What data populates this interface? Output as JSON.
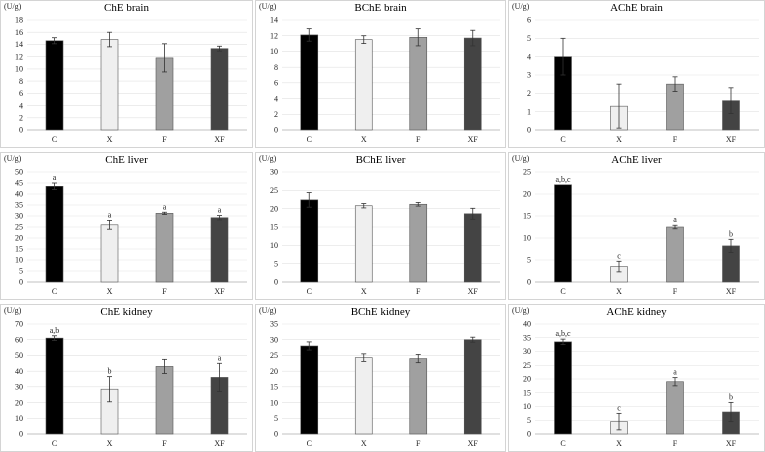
{
  "chart_data": [
    {
      "type": "bar",
      "title": "ChE brain",
      "ylabel": "(U/g)",
      "ylim": [
        0,
        18
      ],
      "ytick_step": 2,
      "categories": [
        "C",
        "X",
        "F",
        "XF"
      ],
      "values": [
        14.6,
        14.8,
        11.8,
        13.3
      ],
      "errors": [
        0.5,
        1.2,
        2.3,
        0.4
      ],
      "labels": [
        "",
        "",
        "",
        ""
      ]
    },
    {
      "type": "bar",
      "title": "BChE brain",
      "ylabel": "(U/g)",
      "ylim": [
        0,
        14
      ],
      "ytick_step": 2,
      "categories": [
        "C",
        "X",
        "F",
        "XF"
      ],
      "values": [
        12.1,
        11.5,
        11.8,
        11.7
      ],
      "errors": [
        0.8,
        0.5,
        1.1,
        1.0
      ],
      "labels": [
        "",
        "",
        "",
        ""
      ]
    },
    {
      "type": "bar",
      "title": "AChE brain",
      "ylabel": "(U/g)",
      "ylim": [
        0,
        6
      ],
      "ytick_step": 1,
      "categories": [
        "C",
        "X",
        "F",
        "XF"
      ],
      "values": [
        4.0,
        1.3,
        2.5,
        1.6
      ],
      "errors": [
        1.0,
        1.2,
        0.4,
        0.7
      ],
      "labels": [
        "",
        "",
        "",
        ""
      ]
    },
    {
      "type": "bar",
      "title": "ChE liver",
      "ylabel": "(U/g)",
      "ylim": [
        0,
        50
      ],
      "ytick_step": 5,
      "categories": [
        "C",
        "X",
        "F",
        "XF"
      ],
      "values": [
        43.5,
        26.0,
        31.2,
        29.2
      ],
      "errors": [
        1.5,
        2.0,
        0.5,
        1.0
      ],
      "labels": [
        "a",
        "a",
        "a",
        "a"
      ]
    },
    {
      "type": "bar",
      "title": "BChE liver",
      "ylabel": "(U/g)",
      "ylim": [
        0,
        30
      ],
      "ytick_step": 5,
      "categories": [
        "C",
        "X",
        "F",
        "XF"
      ],
      "values": [
        22.4,
        20.8,
        21.2,
        18.6
      ],
      "errors": [
        2.0,
        0.6,
        0.5,
        1.5
      ],
      "labels": [
        "",
        "",
        "",
        ""
      ]
    },
    {
      "type": "bar",
      "title": "AChE liver",
      "ylabel": "(U/g)",
      "ylim": [
        0,
        25
      ],
      "ytick_step": 5,
      "categories": [
        "C",
        "X",
        "F",
        "XF"
      ],
      "values": [
        22.1,
        3.5,
        12.5,
        8.2
      ],
      "errors": [
        0,
        1.2,
        0.4,
        1.5
      ],
      "labels": [
        "a,b,c",
        "c",
        "a",
        "b"
      ]
    },
    {
      "type": "bar",
      "title": "ChE kidney",
      "ylabel": "(U/g)",
      "ylim": [
        0,
        70
      ],
      "ytick_step": 10,
      "categories": [
        "C",
        "X",
        "F",
        "XF"
      ],
      "values": [
        61.0,
        28.5,
        43.0,
        36.0
      ],
      "errors": [
        1.5,
        8.0,
        4.5,
        9.0
      ],
      "labels": [
        "a,b",
        "b",
        "",
        "a"
      ]
    },
    {
      "type": "bar",
      "title": "BChE kidney",
      "ylabel": "(U/g)",
      "ylim": [
        0,
        35
      ],
      "ytick_step": 5,
      "categories": [
        "C",
        "X",
        "F",
        "XF"
      ],
      "values": [
        28.0,
        24.3,
        24.0,
        30.0
      ],
      "errors": [
        1.3,
        1.2,
        1.3,
        0.8
      ],
      "labels": [
        "",
        "",
        "",
        ""
      ]
    },
    {
      "type": "bar",
      "title": "AChE kidney",
      "ylabel": "(U/g)",
      "ylim": [
        0,
        40
      ],
      "ytick_step": 5,
      "categories": [
        "C",
        "X",
        "F",
        "XF"
      ],
      "values": [
        33.5,
        4.5,
        19.0,
        8.0
      ],
      "errors": [
        1.0,
        3.0,
        1.5,
        3.5
      ],
      "labels": [
        "a,b,c",
        "c",
        "a",
        "b"
      ]
    }
  ],
  "colors": {
    "bars": [
      "#000000",
      "#efefef",
      "#a0a0a0",
      "#444444"
    ],
    "bar_stroke": "#555555",
    "panel_border": "#d4d4d4",
    "grid": "#e2e2e2"
  }
}
